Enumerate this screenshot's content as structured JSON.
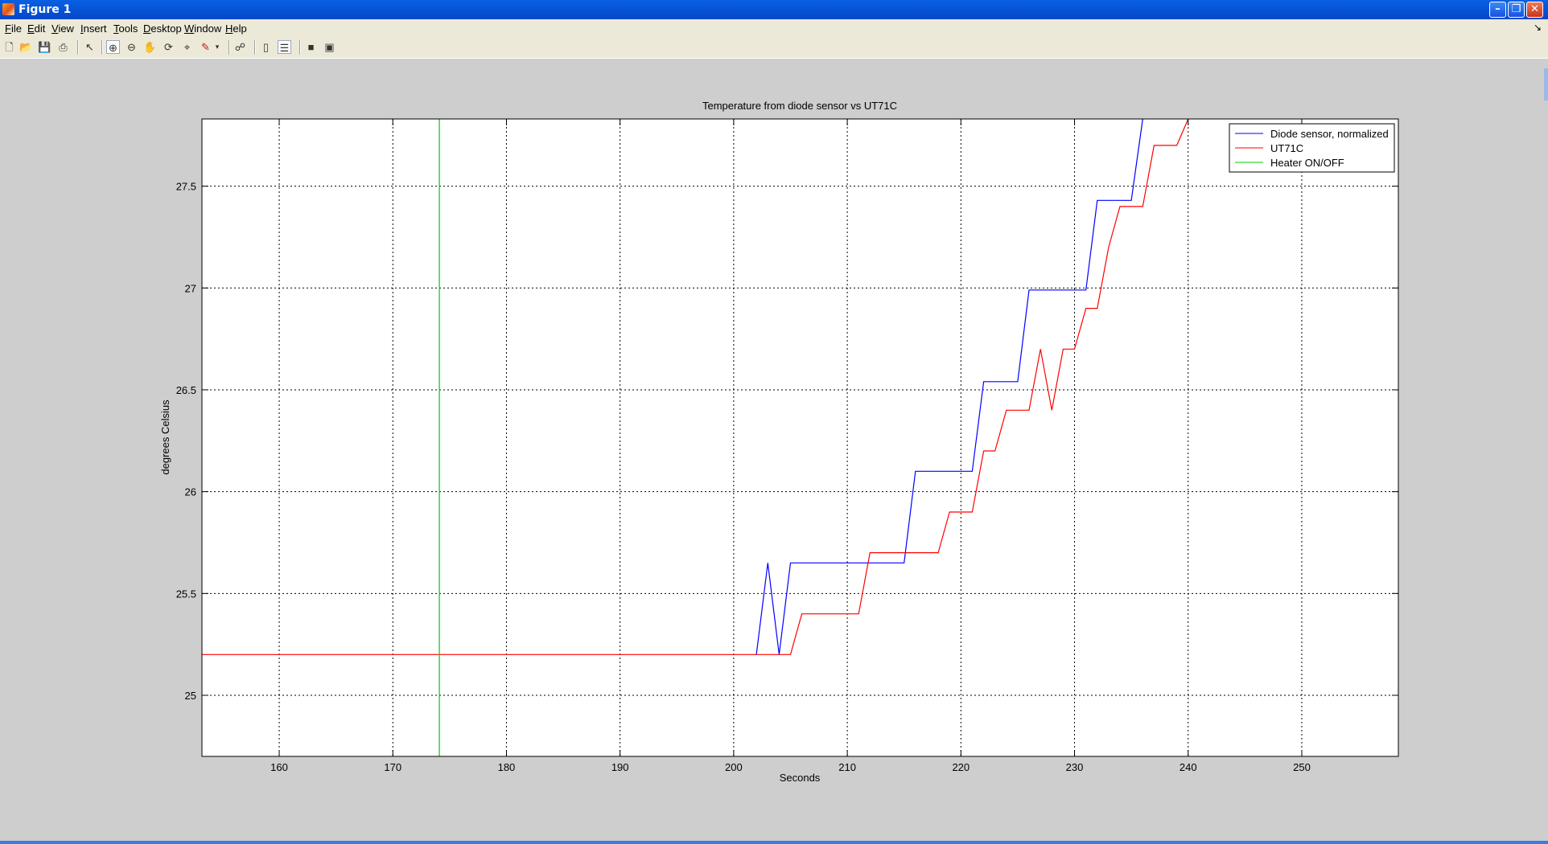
{
  "window": {
    "title": "Figure 1",
    "icon": "matlab-icon",
    "controls": [
      "minimize-icon",
      "maximize-icon",
      "close-icon"
    ]
  },
  "menubar": {
    "items": [
      "File",
      "Edit",
      "View",
      "Insert",
      "Tools",
      "Desktop",
      "Window",
      "Help"
    ]
  },
  "toolbar": {
    "icons": [
      "new-figure-icon",
      "open-icon",
      "save-icon",
      "print-icon",
      "pointer-icon",
      "zoom-in-icon",
      "zoom-out-icon",
      "pan-icon",
      "rotate-3d-icon",
      "data-cursor-icon",
      "brush-icon",
      "brush-dropdown-icon",
      "link-plot-icon",
      "colorbar-icon",
      "legend-icon",
      "hide-plot-tools-icon",
      "show-plot-tools-icon"
    ]
  },
  "colors": {
    "diode": "#0000ff",
    "ut71c": "#ff0000",
    "heater": "#00cc00",
    "figure_bg": "#cecece",
    "titlebar": "#0a5fe3"
  },
  "chart_data": {
    "type": "line",
    "title": "Temperature from diode sensor vs UT71C",
    "xlabel": "Seconds",
    "ylabel": "degrees Celsius",
    "xlim": [
      153.2,
      258.5
    ],
    "ylim": [
      24.7,
      27.83
    ],
    "xticks": [
      160,
      170,
      180,
      190,
      200,
      210,
      220,
      230,
      240,
      250
    ],
    "xtick_labels": [
      "160",
      "170",
      "180",
      "190",
      "200",
      "210",
      "220",
      "230",
      "240",
      "250"
    ],
    "yticks": [
      25,
      25.5,
      26,
      26.5,
      27,
      27.5
    ],
    "ytick_labels": [
      "25",
      "25.5",
      "26",
      "26.5",
      "27",
      "27.5"
    ],
    "grid": true,
    "legend_position": "top-right",
    "series": [
      {
        "name": "Diode sensor, normalized",
        "color": "#0000ff",
        "x": [
          202,
          203,
          204,
          205,
          206,
          215,
          216,
          221,
          222,
          225,
          226,
          231,
          232,
          235,
          236
        ],
        "y": [
          25.2,
          25.65,
          25.2,
          25.65,
          25.65,
          25.65,
          26.1,
          26.1,
          26.54,
          26.54,
          26.99,
          26.99,
          27.43,
          27.43,
          27.88
        ]
      },
      {
        "name": "UT71C",
        "color": "#ff0000",
        "x": [
          153.2,
          205,
          206,
          210,
          211,
          212,
          218,
          219,
          221,
          222,
          223,
          224,
          225,
          226,
          227,
          228,
          229,
          230,
          231,
          232,
          233,
          234,
          236,
          237,
          239,
          240
        ],
        "y": [
          25.2,
          25.2,
          25.4,
          25.4,
          25.4,
          25.7,
          25.7,
          25.9,
          25.9,
          26.2,
          26.2,
          26.4,
          26.4,
          26.4,
          26.7,
          26.4,
          26.7,
          26.7,
          26.9,
          26.9,
          27.2,
          27.4,
          27.4,
          27.7,
          27.7,
          27.88
        ]
      },
      {
        "name": "Heater ON/OFF",
        "color": "#00cc00",
        "x": [
          174.1,
          174.1
        ],
        "y": [
          24.7,
          27.83
        ]
      }
    ]
  }
}
